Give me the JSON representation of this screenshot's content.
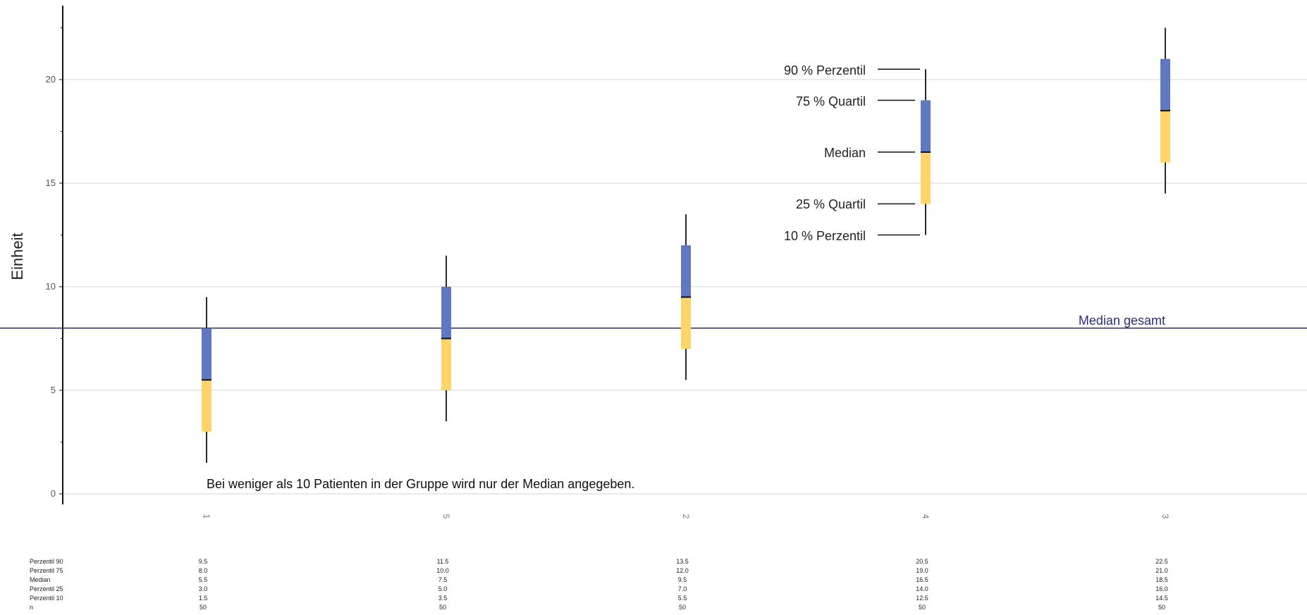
{
  "chart_data": {
    "type": "boxplot",
    "ylabel": "Einheit",
    "ylim": [
      0,
      23
    ],
    "yticks": [
      0,
      5,
      10,
      15,
      20
    ],
    "grid": true,
    "categories": [
      "1",
      "5",
      "2",
      "4",
      "3"
    ],
    "stats": {
      "p90": [
        9.5,
        11.5,
        13.5,
        20.5,
        22.5
      ],
      "p75": [
        8.0,
        10.0,
        12.0,
        19.0,
        21.0
      ],
      "median": [
        5.5,
        7.5,
        9.5,
        16.5,
        18.5
      ],
      "p25": [
        3.0,
        5.0,
        7.0,
        14.0,
        16.0
      ],
      "p10": [
        1.5,
        3.5,
        5.5,
        12.5,
        14.5
      ],
      "n": [
        50,
        50,
        50,
        50,
        50
      ]
    },
    "overall_median": 8.0,
    "overall_median_label": "Median gesamt",
    "legend": {
      "p90": "90 % Perzentil",
      "p75": "75 % Quartil",
      "median": "Median",
      "p25": "25 % Quartil",
      "p10": "10 % Perzentil"
    },
    "note": "Bei weniger als 10 Patienten in der Gruppe wird nur der Median angegeben.",
    "table": {
      "row_labels": [
        "Perzentil 90",
        "Perzentil 75",
        "Median",
        "Perzentil 25",
        "Perzentil 10",
        "n"
      ],
      "rows": [
        [
          "9.5",
          "11.5",
          "13.5",
          "20.5",
          "22.5"
        ],
        [
          "8.0",
          "10.0",
          "12.0",
          "19.0",
          "21.0"
        ],
        [
          "5.5",
          "7.5",
          "9.5",
          "16.5",
          "18.5"
        ],
        [
          "3.0",
          "5.0",
          "7.0",
          "14.0",
          "16.0"
        ],
        [
          "1.5",
          "3.5",
          "5.5",
          "12.5",
          "14.5"
        ],
        [
          "50",
          "50",
          "50",
          "50",
          "50"
        ]
      ]
    },
    "colors": {
      "upper_box": "#6078c0",
      "lower_box": "#ffd46b",
      "whisker": "#111111",
      "median_line": "#2c2c7c",
      "grid": "#e2e2e2",
      "axis": "#111111"
    }
  }
}
